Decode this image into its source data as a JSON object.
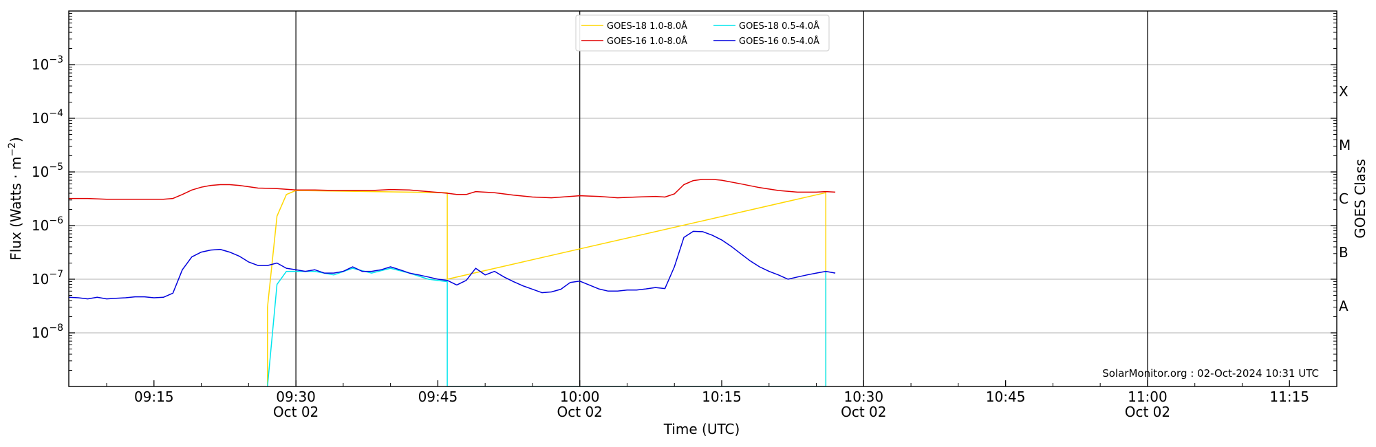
{
  "chart_data": {
    "type": "line",
    "xlabel": "Time (UTC)",
    "ylabel_base": "Flux (Watts · m",
    "ylabel_sup": "−2",
    "ylabel_close": ")",
    "right_label": "GOES Class",
    "credit": "SolarMonitor.org : 02-Oct-2024 10:31 UTC",
    "log_y": true,
    "ylim": [
      1e-09,
      0.01
    ],
    "xlim": [
      "09:06",
      "11:20"
    ],
    "grid_y": true,
    "legend_position": "top-center",
    "y_ticks": [
      {
        "value": 1e-08,
        "base": "10",
        "exp": "−8"
      },
      {
        "value": 1e-07,
        "base": "10",
        "exp": "−7"
      },
      {
        "value": 1e-06,
        "base": "10",
        "exp": "−6"
      },
      {
        "value": 1e-05,
        "base": "10",
        "exp": "−5"
      },
      {
        "value": 0.0001,
        "base": "10",
        "exp": "−4"
      },
      {
        "value": 0.001,
        "base": "10",
        "exp": "−3"
      }
    ],
    "class_labels": [
      {
        "label": "A",
        "value": 3.16e-08
      },
      {
        "label": "B",
        "value": 3.16e-07
      },
      {
        "label": "C",
        "value": 3.16e-06
      },
      {
        "label": "M",
        "value": 3.16e-05
      },
      {
        "label": "X",
        "value": 0.000316
      }
    ],
    "x_ticks": [
      {
        "time": "09:15",
        "label": "09:15",
        "date": ""
      },
      {
        "time": "09:30",
        "label": "09:30",
        "date": "Oct 02"
      },
      {
        "time": "09:45",
        "label": "09:45",
        "date": ""
      },
      {
        "time": "10:00",
        "label": "10:00",
        "date": "Oct 02"
      },
      {
        "time": "10:15",
        "label": "10:15",
        "date": ""
      },
      {
        "time": "10:30",
        "label": "10:30",
        "date": "Oct 02"
      },
      {
        "time": "10:45",
        "label": "10:45",
        "date": ""
      },
      {
        "time": "11:00",
        "label": "11:00",
        "date": "Oct 02"
      },
      {
        "time": "11:15",
        "label": "11:15",
        "date": ""
      }
    ],
    "day_lines": [
      "09:30",
      "10:00",
      "10:30",
      "11:00"
    ],
    "series": [
      {
        "name": "GOES-18 1.0-8.0Å",
        "color": "#ffd700",
        "points": [
          [
            "09:27",
            1e-09
          ],
          [
            "09:27",
            3e-08
          ],
          [
            "09:28",
            1.5e-06
          ],
          [
            "09:29",
            3.8e-06
          ],
          [
            "09:30",
            4.5e-06
          ],
          [
            "09:46",
            4.1e-06
          ],
          [
            "09:46",
            1e-07
          ],
          [
            "10:26",
            4.1e-06
          ],
          [
            "10:26",
            1e-09
          ]
        ]
      },
      {
        "name": "GOES-16 1.0-8.0Å",
        "color": "#e00000",
        "points": [
          [
            "09:06",
            3.2e-06
          ],
          [
            "09:08",
            3.2e-06
          ],
          [
            "09:10",
            3.1e-06
          ],
          [
            "09:12",
            3.1e-06
          ],
          [
            "09:14",
            3.1e-06
          ],
          [
            "09:16",
            3.1e-06
          ],
          [
            "09:17",
            3.2e-06
          ],
          [
            "09:18",
            3.8e-06
          ],
          [
            "09:19",
            4.6e-06
          ],
          [
            "09:20",
            5.2e-06
          ],
          [
            "09:21",
            5.6e-06
          ],
          [
            "09:22",
            5.8e-06
          ],
          [
            "09:23",
            5.8e-06
          ],
          [
            "09:24",
            5.6e-06
          ],
          [
            "09:25",
            5.3e-06
          ],
          [
            "09:26",
            5e-06
          ],
          [
            "09:28",
            4.9e-06
          ],
          [
            "09:30",
            4.6e-06
          ],
          [
            "09:32",
            4.6e-06
          ],
          [
            "09:34",
            4.5e-06
          ],
          [
            "09:36",
            4.5e-06
          ],
          [
            "09:38",
            4.5e-06
          ],
          [
            "09:40",
            4.7e-06
          ],
          [
            "09:42",
            4.6e-06
          ],
          [
            "09:44",
            4.3e-06
          ],
          [
            "09:46",
            4e-06
          ],
          [
            "09:47",
            3.8e-06
          ],
          [
            "09:48",
            3.8e-06
          ],
          [
            "09:49",
            4.3e-06
          ],
          [
            "09:51",
            4.1e-06
          ],
          [
            "09:53",
            3.7e-06
          ],
          [
            "09:55",
            3.4e-06
          ],
          [
            "09:57",
            3.3e-06
          ],
          [
            "09:59",
            3.5e-06
          ],
          [
            "10:00",
            3.6e-06
          ],
          [
            "10:02",
            3.5e-06
          ],
          [
            "10:04",
            3.3e-06
          ],
          [
            "10:06",
            3.4e-06
          ],
          [
            "10:08",
            3.5e-06
          ],
          [
            "10:09",
            3.4e-06
          ],
          [
            "10:10",
            3.9e-06
          ],
          [
            "10:11",
            5.8e-06
          ],
          [
            "10:12",
            6.9e-06
          ],
          [
            "10:13",
            7.3e-06
          ],
          [
            "10:14",
            7.3e-06
          ],
          [
            "10:15",
            7e-06
          ],
          [
            "10:17",
            6e-06
          ],
          [
            "10:19",
            5.1e-06
          ],
          [
            "10:21",
            4.5e-06
          ],
          [
            "10:23",
            4.2e-06
          ],
          [
            "10:25",
            4.2e-06
          ],
          [
            "10:26",
            4.3e-06
          ],
          [
            "10:27",
            4.2e-06
          ]
        ]
      },
      {
        "name": "GOES-18 0.5-4.0Å",
        "color": "#00e5ee",
        "points": [
          [
            "09:27",
            1e-09
          ],
          [
            "09:28",
            8e-08
          ],
          [
            "09:29",
            1.4e-07
          ],
          [
            "09:30",
            1.4e-07
          ],
          [
            "09:32",
            1.4e-07
          ],
          [
            "09:34",
            1.2e-07
          ],
          [
            "09:36",
            1.6e-07
          ],
          [
            "09:38",
            1.3e-07
          ],
          [
            "09:40",
            1.6e-07
          ],
          [
            "09:42",
            1.3e-07
          ],
          [
            "09:44",
            1e-07
          ],
          [
            "09:46",
            9e-08
          ],
          [
            "09:46",
            1e-09
          ],
          [
            "10:26",
            1e-09
          ],
          [
            "10:26",
            1.4e-07
          ]
        ]
      },
      {
        "name": "GOES-16 0.5-4.0Å",
        "color": "#0000dd",
        "points": [
          [
            "09:06",
            4.6e-08
          ],
          [
            "09:07",
            4.5e-08
          ],
          [
            "09:08",
            4.3e-08
          ],
          [
            "09:09",
            4.6e-08
          ],
          [
            "09:10",
            4.3e-08
          ],
          [
            "09:11",
            4.4e-08
          ],
          [
            "09:12",
            4.5e-08
          ],
          [
            "09:13",
            4.7e-08
          ],
          [
            "09:14",
            4.7e-08
          ],
          [
            "09:15",
            4.5e-08
          ],
          [
            "09:16",
            4.6e-08
          ],
          [
            "09:17",
            5.5e-08
          ],
          [
            "09:18",
            1.5e-07
          ],
          [
            "09:19",
            2.6e-07
          ],
          [
            "09:20",
            3.2e-07
          ],
          [
            "09:21",
            3.5e-07
          ],
          [
            "09:22",
            3.6e-07
          ],
          [
            "09:23",
            3.2e-07
          ],
          [
            "09:24",
            2.7e-07
          ],
          [
            "09:25",
            2.1e-07
          ],
          [
            "09:26",
            1.8e-07
          ],
          [
            "09:27",
            1.8e-07
          ],
          [
            "09:28",
            2e-07
          ],
          [
            "09:29",
            1.6e-07
          ],
          [
            "09:30",
            1.5e-07
          ],
          [
            "09:31",
            1.4e-07
          ],
          [
            "09:32",
            1.5e-07
          ],
          [
            "09:33",
            1.3e-07
          ],
          [
            "09:34",
            1.3e-07
          ],
          [
            "09:35",
            1.4e-07
          ],
          [
            "09:36",
            1.7e-07
          ],
          [
            "09:37",
            1.4e-07
          ],
          [
            "09:38",
            1.4e-07
          ],
          [
            "09:39",
            1.5e-07
          ],
          [
            "09:40",
            1.7e-07
          ],
          [
            "09:41",
            1.5e-07
          ],
          [
            "09:42",
            1.3e-07
          ],
          [
            "09:43",
            1.2e-07
          ],
          [
            "09:44",
            1.1e-07
          ],
          [
            "09:45",
            1e-07
          ],
          [
            "09:46",
            9.5e-08
          ],
          [
            "09:47",
            7.8e-08
          ],
          [
            "09:48",
            9.5e-08
          ],
          [
            "09:49",
            1.6e-07
          ],
          [
            "09:50",
            1.2e-07
          ],
          [
            "09:51",
            1.4e-07
          ],
          [
            "09:52",
            1.1e-07
          ],
          [
            "09:53",
            9e-08
          ],
          [
            "09:54",
            7.5e-08
          ],
          [
            "09:55",
            6.5e-08
          ],
          [
            "09:56",
            5.6e-08
          ],
          [
            "09:57",
            5.8e-08
          ],
          [
            "09:58",
            6.5e-08
          ],
          [
            "09:59",
            8.7e-08
          ],
          [
            "10:00",
            9.2e-08
          ],
          [
            "10:01",
            7.8e-08
          ],
          [
            "10:02",
            6.6e-08
          ],
          [
            "10:03",
            6e-08
          ],
          [
            "10:04",
            6e-08
          ],
          [
            "10:05",
            6.3e-08
          ],
          [
            "10:06",
            6.3e-08
          ],
          [
            "10:07",
            6.6e-08
          ],
          [
            "10:08",
            7e-08
          ],
          [
            "10:09",
            6.7e-08
          ],
          [
            "10:10",
            1.7e-07
          ],
          [
            "10:11",
            6e-07
          ],
          [
            "10:12",
            7.8e-07
          ],
          [
            "10:13",
            7.7e-07
          ],
          [
            "10:14",
            6.6e-07
          ],
          [
            "10:15",
            5.4e-07
          ],
          [
            "10:16",
            4.1e-07
          ],
          [
            "10:17",
            3e-07
          ],
          [
            "10:18",
            2.2e-07
          ],
          [
            "10:19",
            1.7e-07
          ],
          [
            "10:20",
            1.4e-07
          ],
          [
            "10:21",
            1.2e-07
          ],
          [
            "10:22",
            1e-07
          ],
          [
            "10:23",
            1.1e-07
          ],
          [
            "10:24",
            1.2e-07
          ],
          [
            "10:25",
            1.3e-07
          ],
          [
            "10:26",
            1.4e-07
          ],
          [
            "10:27",
            1.3e-07
          ]
        ]
      }
    ]
  }
}
